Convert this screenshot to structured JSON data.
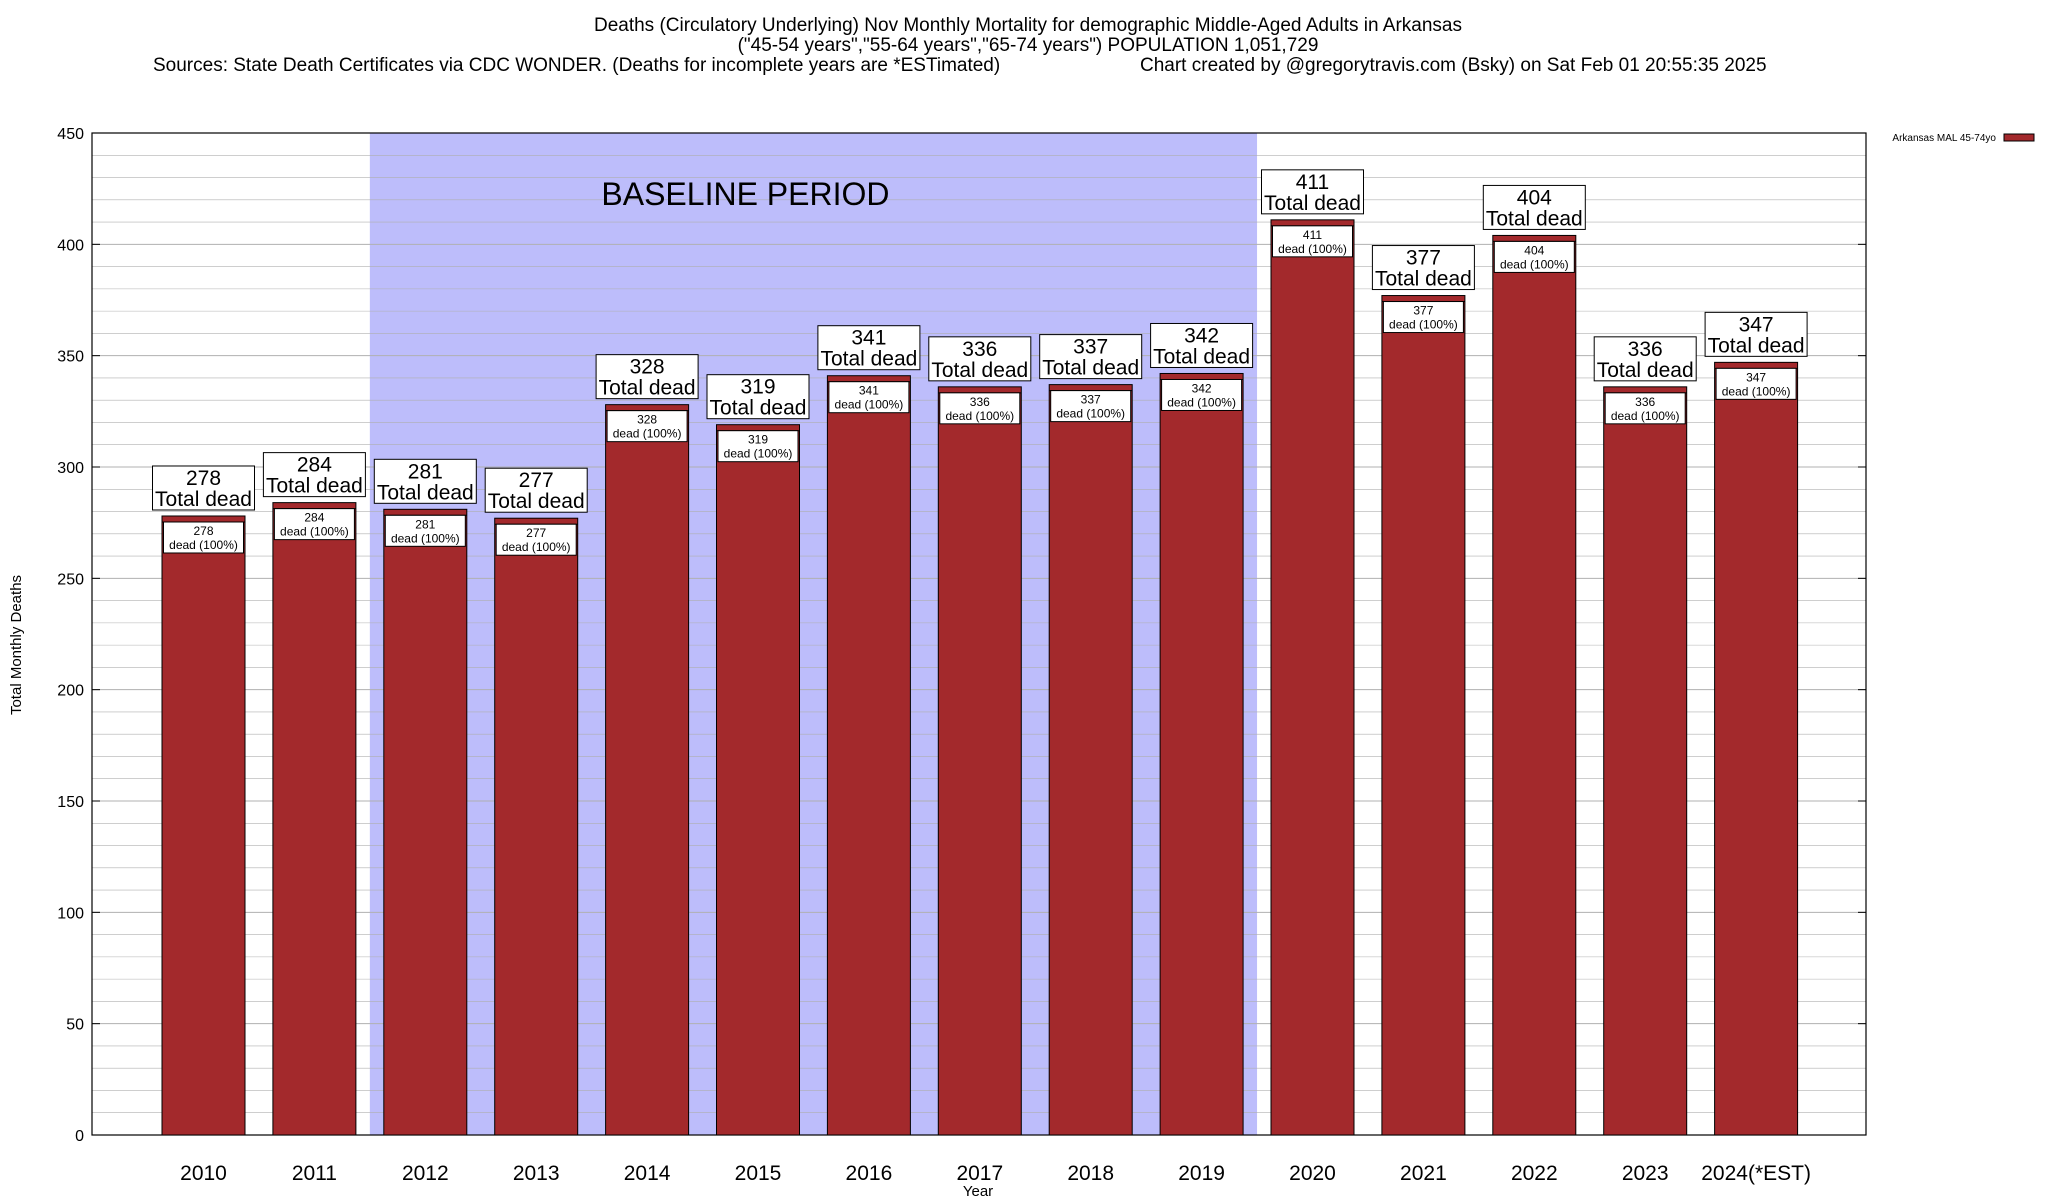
{
  "titles": {
    "line1": "Deaths (Circulatory Underlying) Nov Monthly Mortality for demographic Middle-Aged Adults in Arkansas",
    "line2": "(\"45-54 years\",\"55-64 years\",\"65-74 years\") POPULATION 1,051,729",
    "line3_left": "Sources: State Death Certificates via CDC WONDER. (Deaths for incomplete years are *ESTimated)",
    "line3_right": "Chart created by @gregorytravis.com (Bsky) on Sat Feb 01 20:55:35 2025"
  },
  "annotation": {
    "baseline_label": "BASELINE PERIOD",
    "baseline_start": "2012",
    "baseline_end": "2019"
  },
  "colors": {
    "bar": "#a3292c",
    "baseline": "#bdbdfb",
    "grid": "#b0b0b0"
  },
  "chart_data": {
    "type": "bar",
    "title": "Deaths (Circulatory Underlying) Nov Monthly Mortality for demographic Middle-Aged Adults in Arkansas",
    "xlabel": "Year",
    "ylabel": "Total Monthly Deaths",
    "ylim": [
      0,
      450
    ],
    "yticks": [
      0,
      50,
      100,
      150,
      200,
      250,
      300,
      350,
      400,
      450
    ],
    "grid": true,
    "legend_position": "top-right",
    "categories": [
      "2010",
      "2011",
      "2012",
      "2013",
      "2014",
      "2015",
      "2016",
      "2017",
      "2018",
      "2019",
      "2020",
      "2021",
      "2022",
      "2023",
      "2024(*EST)"
    ],
    "series": [
      {
        "name": "Arkansas MAL 45-74yo",
        "values": [
          278,
          284,
          281,
          277,
          328,
          319,
          341,
          336,
          337,
          342,
          411,
          377,
          404,
          336,
          347
        ]
      }
    ],
    "label_total_suffix": "Total dead",
    "label_inner_suffix": "dead (100%)"
  }
}
